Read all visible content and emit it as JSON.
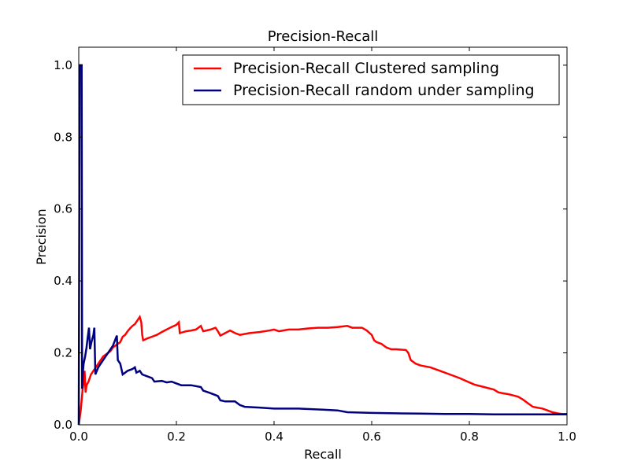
{
  "chart_data": {
    "type": "line",
    "title": "Precision-Recall",
    "xlabel": "Recall",
    "ylabel": "Precision",
    "xlim": [
      0.0,
      1.0
    ],
    "ylim": [
      0.0,
      1.05
    ],
    "xticks": [
      "0.0",
      "0.2",
      "0.4",
      "0.6",
      "0.8",
      "1.0"
    ],
    "xtick_values": [
      0.0,
      0.2,
      0.4,
      0.6,
      0.8,
      1.0
    ],
    "yticks": [
      "0.0",
      "0.2",
      "0.4",
      "0.6",
      "0.8",
      "1.0"
    ],
    "ytick_values": [
      0.0,
      0.2,
      0.4,
      0.6,
      0.8,
      1.0
    ],
    "grid": false,
    "legend_position": "top-right",
    "series": [
      {
        "name": "Precision-Recall Clustered sampling",
        "color": "#ff0000",
        "points": [
          [
            0.0,
            0.0
          ],
          [
            0.004,
            0.04
          ],
          [
            0.008,
            0.1
          ],
          [
            0.01,
            0.12
          ],
          [
            0.012,
            0.15
          ],
          [
            0.014,
            0.09
          ],
          [
            0.016,
            0.11
          ],
          [
            0.02,
            0.12
          ],
          [
            0.025,
            0.14
          ],
          [
            0.03,
            0.15
          ],
          [
            0.035,
            0.16
          ],
          [
            0.04,
            0.17
          ],
          [
            0.045,
            0.18
          ],
          [
            0.05,
            0.19
          ],
          [
            0.055,
            0.195
          ],
          [
            0.06,
            0.2
          ],
          [
            0.065,
            0.205
          ],
          [
            0.07,
            0.215
          ],
          [
            0.075,
            0.22
          ],
          [
            0.08,
            0.225
          ],
          [
            0.085,
            0.23
          ],
          [
            0.09,
            0.245
          ],
          [
            0.095,
            0.25
          ],
          [
            0.1,
            0.26
          ],
          [
            0.105,
            0.268
          ],
          [
            0.11,
            0.275
          ],
          [
            0.115,
            0.28
          ],
          [
            0.12,
            0.29
          ],
          [
            0.125,
            0.3
          ],
          [
            0.128,
            0.285
          ],
          [
            0.13,
            0.25
          ],
          [
            0.132,
            0.235
          ],
          [
            0.14,
            0.24
          ],
          [
            0.15,
            0.245
          ],
          [
            0.16,
            0.25
          ],
          [
            0.17,
            0.258
          ],
          [
            0.18,
            0.265
          ],
          [
            0.19,
            0.272
          ],
          [
            0.2,
            0.278
          ],
          [
            0.205,
            0.285
          ],
          [
            0.207,
            0.255
          ],
          [
            0.22,
            0.26
          ],
          [
            0.23,
            0.262
          ],
          [
            0.24,
            0.265
          ],
          [
            0.25,
            0.275
          ],
          [
            0.255,
            0.26
          ],
          [
            0.27,
            0.265
          ],
          [
            0.28,
            0.27
          ],
          [
            0.285,
            0.26
          ],
          [
            0.29,
            0.248
          ],
          [
            0.3,
            0.255
          ],
          [
            0.31,
            0.262
          ],
          [
            0.32,
            0.255
          ],
          [
            0.33,
            0.25
          ],
          [
            0.35,
            0.255
          ],
          [
            0.37,
            0.258
          ],
          [
            0.39,
            0.262
          ],
          [
            0.4,
            0.265
          ],
          [
            0.41,
            0.26
          ],
          [
            0.43,
            0.265
          ],
          [
            0.45,
            0.265
          ],
          [
            0.47,
            0.268
          ],
          [
            0.49,
            0.27
          ],
          [
            0.51,
            0.27
          ],
          [
            0.53,
            0.272
          ],
          [
            0.55,
            0.275
          ],
          [
            0.56,
            0.27
          ],
          [
            0.58,
            0.27
          ],
          [
            0.59,
            0.262
          ],
          [
            0.6,
            0.25
          ],
          [
            0.605,
            0.235
          ],
          [
            0.61,
            0.23
          ],
          [
            0.62,
            0.225
          ],
          [
            0.63,
            0.215
          ],
          [
            0.64,
            0.21
          ],
          [
            0.65,
            0.21
          ],
          [
            0.67,
            0.208
          ],
          [
            0.675,
            0.2
          ],
          [
            0.68,
            0.18
          ],
          [
            0.69,
            0.17
          ],
          [
            0.7,
            0.165
          ],
          [
            0.72,
            0.16
          ],
          [
            0.74,
            0.15
          ],
          [
            0.76,
            0.14
          ],
          [
            0.78,
            0.13
          ],
          [
            0.8,
            0.118
          ],
          [
            0.81,
            0.112
          ],
          [
            0.83,
            0.105
          ],
          [
            0.85,
            0.098
          ],
          [
            0.86,
            0.09
          ],
          [
            0.88,
            0.085
          ],
          [
            0.9,
            0.078
          ],
          [
            0.91,
            0.07
          ],
          [
            0.92,
            0.06
          ],
          [
            0.93,
            0.05
          ],
          [
            0.95,
            0.045
          ],
          [
            0.96,
            0.04
          ],
          [
            0.97,
            0.035
          ],
          [
            0.98,
            0.032
          ],
          [
            0.99,
            0.03
          ],
          [
            1.0,
            0.03
          ]
        ]
      },
      {
        "name": "Precision-Recall random under sampling",
        "color": "#000080",
        "points": [
          [
            0.0,
            0.0
          ],
          [
            0.002,
            1.0
          ],
          [
            0.006,
            1.0
          ],
          [
            0.007,
            0.1
          ],
          [
            0.008,
            0.14
          ],
          [
            0.01,
            0.17
          ],
          [
            0.013,
            0.19
          ],
          [
            0.016,
            0.215
          ],
          [
            0.018,
            0.24
          ],
          [
            0.021,
            0.27
          ],
          [
            0.023,
            0.21
          ],
          [
            0.026,
            0.23
          ],
          [
            0.03,
            0.25
          ],
          [
            0.032,
            0.27
          ],
          [
            0.034,
            0.14
          ],
          [
            0.04,
            0.16
          ],
          [
            0.05,
            0.18
          ],
          [
            0.06,
            0.2
          ],
          [
            0.07,
            0.22
          ],
          [
            0.078,
            0.248
          ],
          [
            0.08,
            0.18
          ],
          [
            0.085,
            0.17
          ],
          [
            0.09,
            0.14
          ],
          [
            0.095,
            0.145
          ],
          [
            0.1,
            0.15
          ],
          [
            0.11,
            0.155
          ],
          [
            0.115,
            0.16
          ],
          [
            0.118,
            0.145
          ],
          [
            0.125,
            0.15
          ],
          [
            0.13,
            0.14
          ],
          [
            0.14,
            0.135
          ],
          [
            0.15,
            0.13
          ],
          [
            0.155,
            0.12
          ],
          [
            0.17,
            0.122
          ],
          [
            0.18,
            0.118
          ],
          [
            0.19,
            0.12
          ],
          [
            0.2,
            0.115
          ],
          [
            0.21,
            0.11
          ],
          [
            0.23,
            0.11
          ],
          [
            0.25,
            0.105
          ],
          [
            0.255,
            0.095
          ],
          [
            0.27,
            0.088
          ],
          [
            0.285,
            0.08
          ],
          [
            0.29,
            0.068
          ],
          [
            0.3,
            0.065
          ],
          [
            0.32,
            0.065
          ],
          [
            0.33,
            0.055
          ],
          [
            0.34,
            0.05
          ],
          [
            0.37,
            0.048
          ],
          [
            0.4,
            0.045
          ],
          [
            0.45,
            0.045
          ],
          [
            0.5,
            0.042
          ],
          [
            0.53,
            0.04
          ],
          [
            0.55,
            0.035
          ],
          [
            0.6,
            0.033
          ],
          [
            0.65,
            0.032
          ],
          [
            0.7,
            0.031
          ],
          [
            0.75,
            0.03
          ],
          [
            0.8,
            0.03
          ],
          [
            0.85,
            0.029
          ],
          [
            0.9,
            0.029
          ],
          [
            0.95,
            0.029
          ],
          [
            1.0,
            0.029
          ]
        ]
      }
    ]
  }
}
